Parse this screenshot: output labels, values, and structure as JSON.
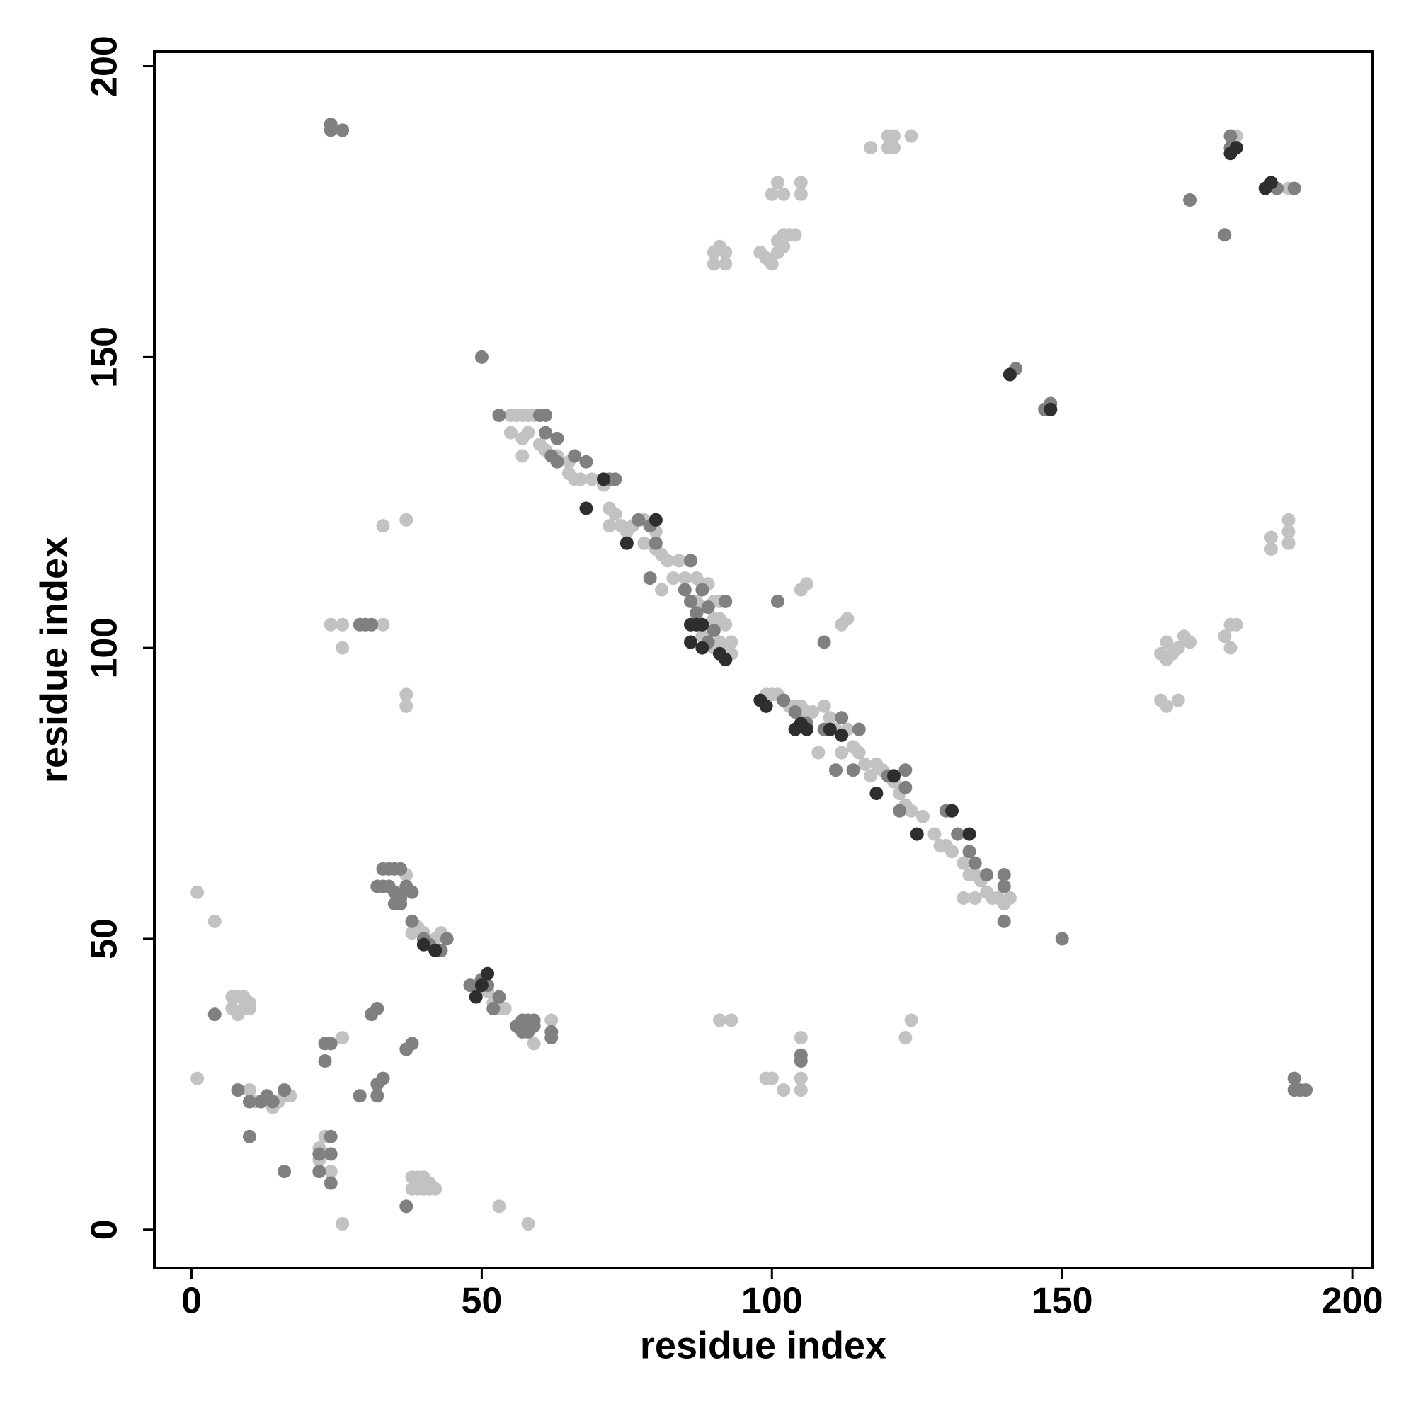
{
  "chart_data": {
    "type": "scatter",
    "xlabel": "residue index",
    "ylabel": "residue index",
    "xlim": [
      -6.4,
      203.4
    ],
    "ylim": [
      -6.6,
      202.5
    ],
    "xticks": [
      0,
      50,
      100,
      150,
      200
    ],
    "yticks": [
      0,
      50,
      100,
      150,
      200
    ],
    "series": [
      {
        "color": "#c2c2c2",
        "x": [
          1,
          1,
          4,
          7,
          8,
          9,
          10,
          7,
          8,
          9,
          10,
          26,
          26,
          23,
          22,
          22,
          24,
          37,
          37,
          33,
          37,
          38,
          39,
          40,
          41,
          38,
          39,
          40,
          41,
          42,
          37,
          24,
          26,
          26,
          33,
          10,
          11,
          14,
          15,
          16,
          17,
          53,
          58,
          59,
          62,
          56,
          49,
          51,
          52,
          53,
          54,
          38,
          39,
          40,
          42,
          43,
          91,
          93,
          99,
          100,
          102,
          105,
          105,
          105,
          123,
          124
        ],
        "values": [
          58,
          26,
          53,
          40,
          40,
          40,
          39,
          38,
          37,
          38,
          38,
          1,
          33,
          16,
          14,
          12,
          10,
          92,
          90,
          121,
          122,
          9,
          9,
          9,
          8,
          7,
          7,
          7,
          7,
          7,
          61,
          104,
          104,
          100,
          104,
          24,
          22,
          21,
          22,
          23,
          23,
          4,
          1,
          32,
          36,
          35,
          42,
          41,
          39,
          38,
          38,
          51,
          52,
          51,
          50,
          51,
          36,
          36,
          26,
          26,
          24,
          24,
          26,
          33,
          33,
          36
        ]
      },
      {
        "color": "#c2c2c2",
        "x": [
          55,
          56,
          57,
          58,
          59,
          55,
          57,
          58,
          57,
          60,
          61,
          62,
          63,
          65,
          65,
          66,
          67,
          69,
          71,
          72,
          73,
          72,
          74,
          75,
          76,
          78,
          80,
          78,
          80,
          81,
          82,
          84,
          85,
          83,
          81,
          87,
          88,
          89,
          87,
          88,
          90,
          91,
          90,
          91,
          92,
          88,
          90,
          91,
          92,
          93,
          93
        ],
        "values": [
          140,
          140,
          140,
          140,
          140,
          137,
          136,
          137,
          133,
          135,
          134,
          133,
          133,
          132,
          130,
          129,
          129,
          129,
          128,
          124,
          123,
          121,
          121,
          120,
          121,
          122,
          120,
          118,
          117,
          116,
          115,
          115,
          112,
          112,
          110,
          112,
          111,
          111,
          108,
          107,
          108,
          108,
          105,
          105,
          104,
          102,
          100,
          101,
          100,
          101,
          99
        ]
      },
      {
        "color": "#c2c2c2",
        "x": [
          99,
          100,
          101,
          102,
          103,
          104,
          105,
          106,
          107,
          109,
          110,
          111,
          113,
          112,
          114,
          115,
          116,
          118,
          119,
          121,
          122,
          123,
          124,
          126,
          128,
          129,
          130,
          131,
          133,
          134,
          135,
          136,
          137,
          138,
          139,
          140,
          141,
          133,
          108,
          112,
          117,
          135
        ],
        "values": [
          92,
          92,
          92,
          91,
          90,
          90,
          90,
          89,
          89,
          90,
          88,
          86,
          86,
          85,
          83,
          82,
          80,
          80,
          79,
          77,
          75,
          73,
          72,
          71,
          68,
          66,
          66,
          65,
          63,
          61,
          61,
          60,
          58,
          57,
          57,
          56,
          57,
          57,
          82,
          82,
          78,
          57
        ]
      },
      {
        "color": "#c2c2c2",
        "x": [
          90,
          91,
          92,
          90,
          92,
          98,
          99,
          100,
          101,
          102,
          101,
          102,
          103,
          104,
          100,
          101,
          102,
          105,
          105,
          117,
          120,
          121,
          120,
          121,
          124,
          105,
          106,
          112,
          113,
          180,
          189,
          189,
          189,
          189,
          186,
          186,
          167,
          168,
          169,
          170,
          168,
          171,
          172,
          167,
          168,
          170,
          179,
          180,
          178,
          179
        ],
        "values": [
          168,
          169,
          168,
          166,
          166,
          168,
          167,
          166,
          168,
          169,
          170,
          171,
          171,
          171,
          178,
          180,
          178,
          178,
          180,
          186,
          188,
          188,
          186,
          186,
          188,
          110,
          111,
          104,
          105,
          188,
          179,
          118,
          120,
          122,
          117,
          119,
          99,
          98,
          99,
          100,
          101,
          102,
          101,
          91,
          90,
          91,
          104,
          104,
          102,
          100
        ]
      },
      {
        "color": "#808080",
        "x": [
          4,
          8,
          10,
          12,
          13,
          14,
          16,
          10,
          16,
          22,
          22,
          23,
          23,
          24,
          24,
          24,
          24,
          24,
          24,
          26,
          29,
          31,
          32,
          32,
          32,
          33,
          37,
          37,
          38,
          29,
          30,
          31,
          33,
          34,
          35,
          36,
          32,
          33,
          34,
          35,
          36,
          37,
          38,
          35,
          36,
          38,
          40,
          41,
          44,
          42,
          43,
          48,
          50,
          51,
          53,
          52,
          56,
          57,
          58,
          59,
          57,
          58,
          59,
          62,
          62,
          50
        ],
        "values": [
          37,
          24,
          22,
          22,
          23,
          22,
          24,
          16,
          10,
          10,
          13,
          29,
          32,
          32,
          16,
          13,
          8,
          190,
          189,
          189,
          23,
          37,
          38,
          25,
          23,
          26,
          4,
          31,
          32,
          104,
          104,
          104,
          62,
          62,
          62,
          62,
          59,
          59,
          59,
          58,
          57,
          59,
          58,
          56,
          56,
          53,
          50,
          49,
          50,
          48,
          48,
          42,
          43,
          42,
          40,
          38,
          35,
          36,
          36,
          36,
          34,
          34,
          35,
          34,
          33,
          150
        ]
      },
      {
        "color": "#808080",
        "x": [
          53,
          60,
          61,
          61,
          63,
          62,
          66,
          63,
          68,
          72,
          73,
          80,
          79,
          77,
          80,
          86,
          79,
          85,
          86,
          88,
          87,
          89,
          92,
          90,
          89,
          91,
          101,
          102,
          104,
          106,
          109,
          112,
          111,
          115,
          114,
          120,
          123,
          122,
          123,
          130,
          131,
          132,
          134,
          135,
          137,
          140,
          140,
          140,
          150,
          105,
          105,
          109,
          141,
          142,
          148,
          147,
          172,
          178,
          179,
          179,
          190,
          187,
          190,
          190,
          191,
          192
        ],
        "values": [
          140,
          140,
          140,
          137,
          136,
          133,
          133,
          132,
          132,
          129,
          129,
          122,
          121,
          122,
          118,
          115,
          112,
          110,
          108,
          110,
          106,
          107,
          108,
          103,
          101,
          99,
          108,
          91,
          89,
          87,
          86,
          88,
          79,
          86,
          79,
          78,
          79,
          72,
          76,
          72,
          72,
          68,
          65,
          63,
          61,
          61,
          59,
          53,
          50,
          29,
          30,
          101,
          147,
          148,
          142,
          141,
          177,
          171,
          188,
          186,
          179,
          179,
          26,
          24,
          24,
          24
        ]
      },
      {
        "color": "#2e2e2e",
        "x": [
          68,
          75,
          71,
          80,
          86,
          87,
          88,
          91,
          92,
          98,
          99,
          104,
          106,
          105,
          110,
          112,
          118,
          121,
          125,
          131,
          134,
          50,
          51,
          49,
          42,
          40,
          180,
          179,
          186,
          185,
          148,
          141,
          88,
          86
        ],
        "values": [
          124,
          118,
          129,
          122,
          104,
          104,
          104,
          99,
          98,
          91,
          90,
          86,
          86,
          87,
          86,
          85,
          75,
          78,
          68,
          72,
          68,
          42,
          44,
          40,
          48,
          49,
          186,
          185,
          180,
          179,
          141,
          147,
          100,
          101
        ]
      }
    ]
  }
}
